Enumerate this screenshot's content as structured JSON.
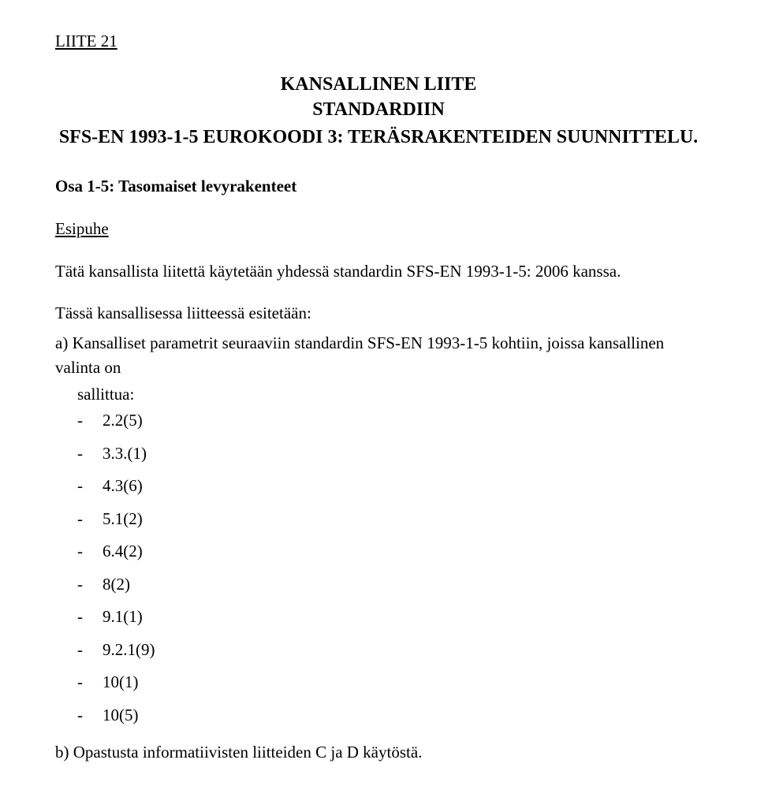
{
  "doc_label": "LIITE 21",
  "title": {
    "line1": "KANSALLINEN LIITE",
    "line2": "STANDARDIIN",
    "line3": "SFS-EN 1993-1-5 EUROKOODI 3: TERÄSRAKENTEIDEN SUUNNITTELU."
  },
  "subtitle": "Osa 1-5: Tasomaiset levyrakenteet",
  "esipuhe_heading": "Esipuhe",
  "intro_para": "Tätä kansallista liitettä käytetään yhdessä standardin SFS-EN 1993-1-5: 2006 kanssa.",
  "list_intro": "Tässä kansallisessa liitteessä esitetään:",
  "section_a": {
    "lead": "a) Kansalliset parametrit seuraaviin standardin SFS-EN 1993-1-5 kohtiin, joissa kansallinen valinta on",
    "lead2": "sallittua:",
    "items": [
      "2.2(5)",
      "3.3.(1)",
      "4.3(6)",
      "5.1(2)",
      "6.4(2)",
      "8(2)",
      "9.1(1)",
      "9.2.1(9)",
      "10(1)",
      "10(5)"
    ]
  },
  "section_b": "b) Opastusta informatiivisten liitteiden C ja D käytöstä."
}
